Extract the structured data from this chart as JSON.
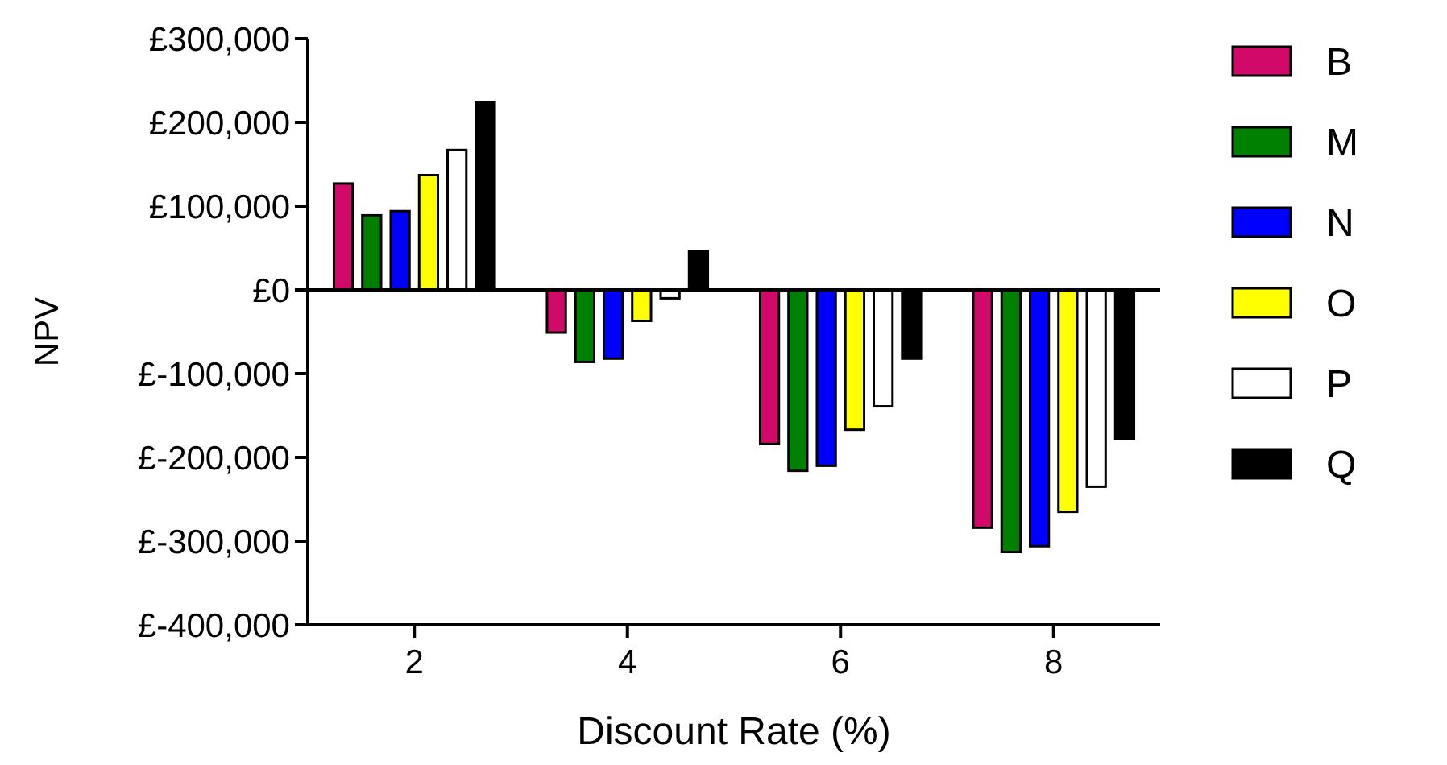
{
  "chart_data": {
    "type": "bar",
    "xlabel": "Discount Rate (%)",
    "ylabel": "NPV",
    "x": [
      2,
      4,
      6,
      8
    ],
    "xlim": [
      1,
      9
    ],
    "xticks": [
      2,
      4,
      6,
      8
    ],
    "ylim": [
      -400000,
      300000
    ],
    "yticks": [
      {
        "value": -400000,
        "label": "£-400,000"
      },
      {
        "value": -300000,
        "label": "£-300,000"
      },
      {
        "value": -200000,
        "label": "£-200,000"
      },
      {
        "value": -100000,
        "label": "£-100,000"
      },
      {
        "value": 0,
        "label": "£0"
      },
      {
        "value": 100000,
        "label": "£100,000"
      },
      {
        "value": 200000,
        "label": "£200,000"
      },
      {
        "value": 300000,
        "label": "£300,000"
      }
    ],
    "series": [
      {
        "name": "B",
        "color": "#d10a6a",
        "values": [
          127000,
          -51000,
          -184000,
          -284000
        ]
      },
      {
        "name": "M",
        "color": "#008000",
        "values": [
          89000,
          -86000,
          -216000,
          -313000
        ]
      },
      {
        "name": "N",
        "color": "#0000ff",
        "values": [
          94000,
          -82000,
          -210000,
          -306000
        ]
      },
      {
        "name": "O",
        "color": "#ffff00",
        "values": [
          137000,
          -37000,
          -167000,
          -265000
        ]
      },
      {
        "name": "P",
        "color": "#ffffff",
        "values": [
          167000,
          -10000,
          -139000,
          -235000
        ]
      },
      {
        "name": "Q",
        "color": "#000000",
        "values": [
          224000,
          46000,
          -82000,
          -178000
        ]
      }
    ],
    "ref_lines": [
      {
        "axis": "y",
        "value": 0,
        "color": "#000000"
      }
    ],
    "legend": "right"
  }
}
